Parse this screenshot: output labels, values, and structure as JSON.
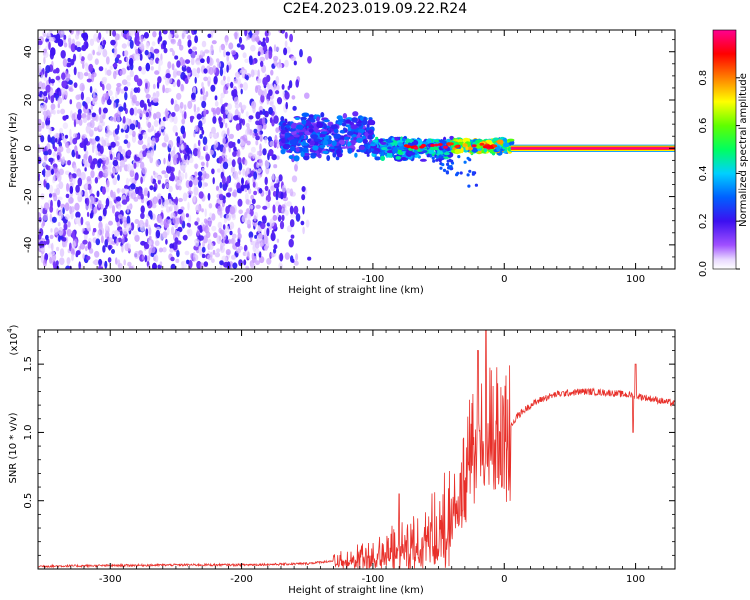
{
  "title": "C2E4.2023.019.09.22.R24",
  "chart_data": [
    {
      "type": "heatmap",
      "xlabel": "Height of straight line (km)",
      "ylabel": "Frequency (Hz)",
      "xlim": [
        -355,
        130
      ],
      "ylim": [
        -50,
        49
      ],
      "xticks": [
        -300,
        -200,
        -100,
        0,
        100
      ],
      "yticks": [
        -40,
        -20,
        0,
        20,
        40
      ],
      "colorbar": {
        "label": "Normalized spectral amplitude",
        "range": [
          0,
          1
        ],
        "ticks": [
          "0.0",
          "0.2",
          "0.4",
          "0.6",
          "0.8"
        ]
      },
      "regions": [
        {
          "x_range": [
            -355,
            -145
          ],
          "freq_range": [
            -50,
            49
          ],
          "amplitude": 0.15,
          "description_free": true
        },
        {
          "x_range": [
            -170,
            -100
          ],
          "freq_center": 5,
          "freq_halfwidth": 10,
          "amplitude": 0.35
        },
        {
          "x_range": [
            -100,
            -40
          ],
          "freq_center": 0,
          "freq_halfwidth": 5,
          "amplitude": 0.5
        },
        {
          "x_range": [
            -40,
            5
          ],
          "freq_center": 1,
          "freq_halfwidth": 3,
          "amplitude": 0.8
        },
        {
          "x_range": [
            5,
            130
          ],
          "freq_center": 0,
          "freq_halfwidth": 1.5,
          "amplitude": 1.0
        }
      ],
      "grid": false
    },
    {
      "type": "line",
      "xlabel": "Height of straight line (km)",
      "ylabel": "SNR (10 * v/v)",
      "y_multiplier": "(x10",
      "y_multiplier_exp": "4",
      "y_multiplier_close": ")",
      "xlim": [
        -355,
        130
      ],
      "ylim": [
        0,
        1.75
      ],
      "xticks": [
        -300,
        -200,
        -100,
        0,
        100
      ],
      "yticks": [
        "0.5",
        "1.0",
        "1.5"
      ],
      "ytick_values": [
        0.5,
        1.0,
        1.5
      ],
      "color": "#e8302a",
      "series": [
        {
          "x": [
            -355,
            -300,
            -250,
            -200,
            -170,
            -150,
            -130,
            -110,
            -100,
            -90,
            -80,
            -70,
            -60,
            -50,
            -45,
            -40,
            -35,
            -30,
            -25,
            -20,
            -15,
            -10,
            -5,
            0,
            5,
            10,
            20,
            30,
            40,
            60,
            80,
            100,
            110,
            130
          ],
          "values": [
            0.02,
            0.025,
            0.03,
            0.03,
            0.035,
            0.04,
            0.06,
            0.1,
            0.12,
            0.15,
            0.2,
            0.22,
            0.28,
            0.32,
            0.38,
            0.45,
            0.55,
            0.7,
            0.95,
            1.1,
            1.0,
            1.05,
            1.1,
            1.0,
            1.05,
            1.12,
            1.2,
            1.25,
            1.28,
            1.3,
            1.29,
            1.27,
            1.25,
            1.21
          ]
        }
      ],
      "spikes": [
        {
          "x": -20,
          "y": 1.6
        },
        {
          "x": -14,
          "y": 1.75
        },
        {
          "x": -80,
          "y": 0.55
        },
        {
          "x": 100,
          "y": 1.5
        },
        {
          "x": 98,
          "y": 1.0
        }
      ]
    }
  ]
}
